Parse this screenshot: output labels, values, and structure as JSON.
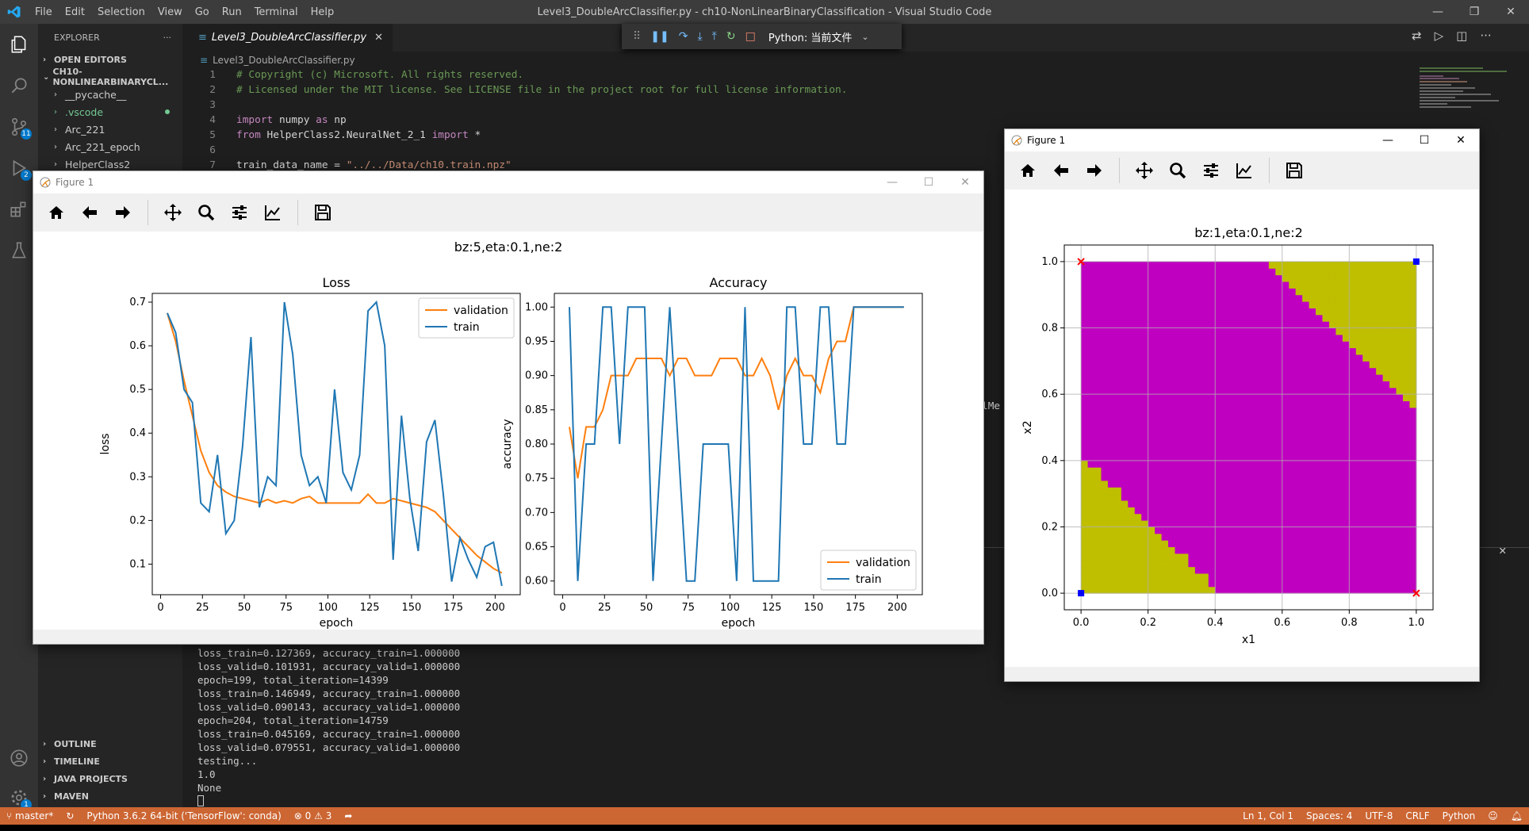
{
  "window": {
    "title": "Level3_DoubleArcClassifier.py - ch10-NonLinearBinaryClassification - Visual Studio Code",
    "menu": [
      "File",
      "Edit",
      "Selection",
      "View",
      "Go",
      "Run",
      "Terminal",
      "Help"
    ]
  },
  "activity": {
    "scm_badge": "11",
    "debug_badge": "2",
    "settings_badge": "1"
  },
  "sidebar": {
    "title": "EXPLORER",
    "more": "···",
    "open_editors": "OPEN EDITORS",
    "project": "CH10-NONLINEARBINARYCL...",
    "items": [
      {
        "label": "__pycache__"
      },
      {
        "label": ".vscode"
      },
      {
        "label": "Arc_221"
      },
      {
        "label": "Arc_221_epoch"
      },
      {
        "label": "HelperClass2"
      }
    ],
    "bottom_sections": [
      "OUTLINE",
      "TIMELINE",
      "JAVA PROJECTS",
      "MAVEN"
    ]
  },
  "editor": {
    "tab": "Level3_DoubleArcClassifier.py",
    "breadcrumb": "Level3_DoubleArcClassifier.py",
    "lines": [
      {
        "n": "1",
        "text": "# Copyright (c) Microsoft. All rights reserved."
      },
      {
        "n": "2",
        "text": "# Licensed under the MIT license. See LICENSE file in the project root for full license information."
      },
      {
        "n": "3",
        "text": ""
      },
      {
        "n": "4",
        "kw": "import",
        "rest": " numpy ",
        "kw2": "as",
        "rest2": " np"
      },
      {
        "n": "5",
        "kw": "from",
        "rest": " HelperClass2.NeuralNet_2_1 ",
        "kw2": "import",
        "rest2": " *"
      },
      {
        "n": "6",
        "text": ""
      },
      {
        "n": "7",
        "rest": "train_data_name = ",
        "str": "\"../../Data/ch10.train.npz\""
      }
    ],
    "side_text": "lMe"
  },
  "debug": {
    "config": "Python: 当前文件"
  },
  "terminal": {
    "lines": [
      "loss_train=0.127369, accuracy_train=1.000000",
      "loss_valid=0.101931, accuracy_valid=1.000000",
      "epoch=199, total_iteration=14399",
      "loss_train=0.146949, accuracy_train=1.000000",
      "loss_valid=0.090143, accuracy_valid=1.000000",
      "epoch=204, total_iteration=14759",
      "loss_train=0.045169, accuracy_train=1.000000",
      "loss_valid=0.079551, accuracy_valid=1.000000",
      "testing...",
      "1.0",
      "None"
    ]
  },
  "status": {
    "branch": "master*",
    "python": "Python 3.6.2 64-bit ('TensorFlow': conda)",
    "errors": "0",
    "warnings": "3",
    "position": "Ln 1, Col 1",
    "spaces": "Spaces: 4",
    "encoding": "UTF-8",
    "eol": "CRLF",
    "language": "Python"
  },
  "figure1": {
    "title": "Figure 1",
    "suptitle": "bz:5,eta:0.1,ne:2"
  },
  "figure2": {
    "title": "Figure 1"
  },
  "chart_data": [
    {
      "type": "line",
      "title": "Loss",
      "xlabel": "epoch",
      "ylabel": "loss",
      "xlim": [
        -5,
        215
      ],
      "ylim": [
        0.03,
        0.72
      ],
      "xticks": [
        0,
        25,
        50,
        75,
        100,
        125,
        150,
        175,
        200
      ],
      "yticks": [
        0.1,
        0.2,
        0.3,
        0.4,
        0.5,
        0.6,
        0.7
      ],
      "ytick_labels": [
        "0.1",
        "0.2",
        "0.3",
        "0.4",
        "0.5",
        "0.6",
        "0.7"
      ],
      "legend": "top-right",
      "series": [
        {
          "name": "validation",
          "color": "#ff7f0e",
          "x": [
            4,
            9,
            14,
            19,
            24,
            29,
            34,
            39,
            44,
            49,
            54,
            59,
            64,
            69,
            74,
            79,
            84,
            89,
            94,
            99,
            104,
            109,
            114,
            119,
            124,
            129,
            134,
            139,
            144,
            149,
            154,
            159,
            164,
            169,
            174,
            179,
            184,
            189,
            194,
            199,
            204
          ],
          "values": [
            0.675,
            0.61,
            0.52,
            0.44,
            0.36,
            0.31,
            0.28,
            0.265,
            0.255,
            0.25,
            0.245,
            0.24,
            0.248,
            0.24,
            0.245,
            0.24,
            0.25,
            0.255,
            0.24,
            0.24,
            0.24,
            0.24,
            0.24,
            0.24,
            0.26,
            0.24,
            0.24,
            0.25,
            0.245,
            0.24,
            0.235,
            0.23,
            0.22,
            0.2,
            0.18,
            0.16,
            0.14,
            0.12,
            0.105,
            0.09,
            0.08
          ]
        },
        {
          "name": "train",
          "color": "#1f77b4",
          "x": [
            4,
            9,
            14,
            19,
            24,
            29,
            34,
            39,
            44,
            49,
            54,
            59,
            64,
            69,
            74,
            79,
            84,
            89,
            94,
            99,
            104,
            109,
            114,
            119,
            124,
            129,
            134,
            139,
            144,
            149,
            154,
            159,
            164,
            169,
            174,
            179,
            184,
            189,
            194,
            199,
            204
          ],
          "values": [
            0.675,
            0.63,
            0.5,
            0.47,
            0.24,
            0.22,
            0.35,
            0.17,
            0.2,
            0.37,
            0.62,
            0.23,
            0.3,
            0.28,
            0.7,
            0.58,
            0.35,
            0.28,
            0.3,
            0.24,
            0.5,
            0.31,
            0.27,
            0.35,
            0.68,
            0.7,
            0.6,
            0.11,
            0.44,
            0.25,
            0.13,
            0.38,
            0.43,
            0.26,
            0.06,
            0.16,
            0.11,
            0.07,
            0.14,
            0.15,
            0.05
          ]
        }
      ]
    },
    {
      "type": "line",
      "title": "Accuracy",
      "xlabel": "epoch",
      "ylabel": "accuracy",
      "xlim": [
        -5,
        215
      ],
      "ylim": [
        0.58,
        1.02
      ],
      "xticks": [
        0,
        25,
        50,
        75,
        100,
        125,
        150,
        175,
        200
      ],
      "yticks": [
        0.6,
        0.65,
        0.7,
        0.75,
        0.8,
        0.85,
        0.9,
        0.95,
        1.0
      ],
      "ytick_labels": [
        "0.60",
        "0.65",
        "0.70",
        "0.75",
        "0.80",
        "0.85",
        "0.90",
        "0.95",
        "1.00"
      ],
      "legend": "bottom-right",
      "series": [
        {
          "name": "validation",
          "color": "#ff7f0e",
          "x": [
            4,
            9,
            14,
            19,
            24,
            29,
            34,
            39,
            44,
            49,
            54,
            59,
            64,
            69,
            74,
            79,
            84,
            89,
            94,
            99,
            104,
            109,
            114,
            119,
            124,
            129,
            134,
            139,
            144,
            149,
            154,
            159,
            164,
            169,
            174,
            179,
            184,
            189,
            194,
            199,
            204
          ],
          "values": [
            0.825,
            0.75,
            0.825,
            0.825,
            0.85,
            0.9,
            0.9,
            0.9,
            0.925,
            0.925,
            0.925,
            0.925,
            0.9,
            0.925,
            0.925,
            0.9,
            0.9,
            0.9,
            0.925,
            0.925,
            0.925,
            0.9,
            0.9,
            0.925,
            0.9,
            0.85,
            0.9,
            0.925,
            0.9,
            0.9,
            0.875,
            0.925,
            0.95,
            0.95,
            1.0,
            1.0,
            1.0,
            1.0,
            1.0,
            1.0,
            1.0
          ]
        },
        {
          "name": "train",
          "color": "#1f77b4",
          "x": [
            4,
            9,
            14,
            19,
            24,
            29,
            34,
            39,
            44,
            49,
            54,
            59,
            64,
            69,
            74,
            79,
            84,
            89,
            94,
            99,
            104,
            109,
            114,
            119,
            124,
            129,
            134,
            139,
            144,
            149,
            154,
            159,
            164,
            169,
            174,
            179,
            184,
            189,
            194,
            199,
            204
          ],
          "values": [
            1.0,
            0.6,
            0.8,
            0.8,
            1.0,
            1.0,
            0.8,
            1.0,
            1.0,
            1.0,
            0.6,
            0.8,
            1.0,
            0.8,
            0.6,
            0.6,
            0.8,
            0.8,
            0.8,
            0.8,
            0.6,
            1.0,
            0.6,
            0.6,
            0.6,
            0.6,
            1.0,
            1.0,
            0.8,
            0.8,
            1.0,
            1.0,
            0.8,
            0.8,
            1.0,
            1.0,
            1.0,
            1.0,
            1.0,
            1.0,
            1.0
          ]
        }
      ]
    },
    {
      "type": "heatmap",
      "title": "bz:1,eta:0.1,ne:2",
      "xlabel": "x1",
      "ylabel": "x2",
      "xlim": [
        -0.05,
        1.05
      ],
      "ylim": [
        -0.05,
        1.05
      ],
      "xticks": [
        0.0,
        0.2,
        0.4,
        0.6,
        0.8,
        1.0
      ],
      "yticks": [
        0.0,
        0.2,
        0.4,
        0.6,
        0.8,
        1.0
      ],
      "grid": true,
      "colors": {
        "class_a": "#c000c0",
        "class_b": "#bfbf00"
      },
      "region_b_rule": "x1 + x2 <= 0.42 or x1 + x2 >= 1.55",
      "points": [
        {
          "x1": 0.0,
          "x2": 1.0,
          "color": "#ff0000",
          "marker": "x"
        },
        {
          "x1": 1.0,
          "x2": 0.0,
          "color": "#ff0000",
          "marker": "x"
        },
        {
          "x1": 0.0,
          "x2": 0.0,
          "color": "#0000ff",
          "marker": "s"
        },
        {
          "x1": 1.0,
          "x2": 1.0,
          "color": "#0000ff",
          "marker": "s"
        }
      ]
    }
  ]
}
